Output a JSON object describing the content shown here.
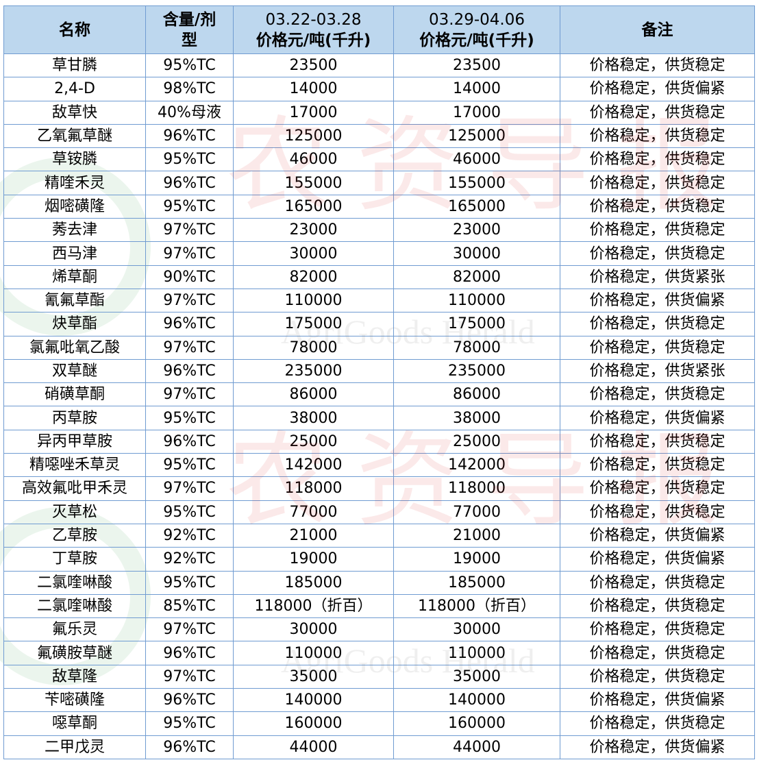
{
  "headers": [
    "名称",
    "含量/剂型",
    "03.22-03.28\n价格元/吨(千升)",
    "03.29-04.06\n价格元/吨(千升)",
    "备注"
  ],
  "header_lines": {
    "name": "名称",
    "content": [
      "含量/剂",
      "型"
    ],
    "period1": [
      "03.22-03.28",
      "价格元/吨(千升)"
    ],
    "period2": [
      "03.29-04.06",
      "价格元/吨(千升)"
    ],
    "note": "备注"
  },
  "watermark": {
    "cn": "农资导报",
    "en": "AgriGoods Herald"
  },
  "colors": {
    "header_bg": "#bdd7ee",
    "border": "#6f9bd1"
  },
  "rows": [
    [
      "草甘膦",
      "95%TC",
      "23500",
      "23500",
      "价格稳定，供货稳定"
    ],
    [
      "2,4-D",
      "98%TC",
      "14000",
      "14000",
      "价格稳定，供货偏紧"
    ],
    [
      "敌草快",
      "40%母液",
      "17000",
      "17000",
      "价格稳定，供货稳定"
    ],
    [
      "乙氧氟草醚",
      "96%TC",
      "125000",
      "125000",
      "价格稳定，供货稳定"
    ],
    [
      "草铵膦",
      "95%TC",
      "46000",
      "46000",
      "价格稳定，供货稳定"
    ],
    [
      "精喹禾灵",
      "96%TC",
      "155000",
      "155000",
      "价格稳定，供货稳定"
    ],
    [
      "烟嘧磺隆",
      "95%TC",
      "165000",
      "165000",
      "价格稳定，供货稳定"
    ],
    [
      "莠去津",
      "97%TC",
      "23000",
      "23000",
      "价格稳定，供货稳定"
    ],
    [
      "西马津",
      "97%TC",
      "30000",
      "30000",
      "价格稳定，供货稳定"
    ],
    [
      "烯草酮",
      "90%TC",
      "82000",
      "82000",
      "价格稳定，供货紧张"
    ],
    [
      "氰氟草酯",
      "97%TC",
      "110000",
      "110000",
      "价格稳定，供货偏紧"
    ],
    [
      "炔草酯",
      "96%TC",
      "175000",
      "175000",
      "价格稳定，供货稳定"
    ],
    [
      "氯氟吡氧乙酸",
      "97%TC",
      "78000",
      "78000",
      "价格稳定，供货稳定"
    ],
    [
      "双草醚",
      "96%TC",
      "235000",
      "235000",
      "价格稳定，供货紧张"
    ],
    [
      "硝磺草酮",
      "97%TC",
      "86000",
      "86000",
      "价格稳定，供货稳定"
    ],
    [
      "丙草胺",
      "95%TC",
      "38000",
      "38000",
      "价格稳定，供货偏紧"
    ],
    [
      "异丙甲草胺",
      "96%TC",
      "25000",
      "25000",
      "价格稳定，供货稳定"
    ],
    [
      "精噁唑禾草灵",
      "95%TC",
      "142000",
      "142000",
      "价格稳定，供货稳定"
    ],
    [
      "高效氟吡甲禾灵",
      "97%TC",
      "118000",
      "118000",
      "价格稳定，供货稳定"
    ],
    [
      "灭草松",
      "95%TC",
      "77000",
      "77000",
      "价格稳定，供货稳定"
    ],
    [
      "乙草胺",
      "92%TC",
      "21000",
      "21000",
      "价格稳定，供货偏紧"
    ],
    [
      "丁草胺",
      "92%TC",
      "19000",
      "19000",
      "价格稳定，供货偏紧"
    ],
    [
      "二氯喹啉酸",
      "95%TC",
      "185000",
      "185000",
      "价格稳定，供货稳定"
    ],
    [
      "二氯喹啉酸",
      "85%TC",
      "118000（折百）",
      "118000（折百）",
      "价格稳定，供货稳定"
    ],
    [
      "氟乐灵",
      "97%TC",
      "30000",
      "30000",
      "价格稳定，供货稳定"
    ],
    [
      "氟磺胺草醚",
      "96%TC",
      "110000",
      "110000",
      "价格稳定，供货稳定"
    ],
    [
      "敌草隆",
      "97%TC",
      "35000",
      "35000",
      "价格稳定，供货稳定"
    ],
    [
      "苄嘧磺隆",
      "96%TC",
      "140000",
      "140000",
      "价格稳定，供货偏紧"
    ],
    [
      "噁草酮",
      "95%TC",
      "160000",
      "160000",
      "价格稳定，供货稳定"
    ],
    [
      "二甲戊灵",
      "96%TC",
      "44000",
      "44000",
      "价格稳定，供货偏紧"
    ]
  ]
}
